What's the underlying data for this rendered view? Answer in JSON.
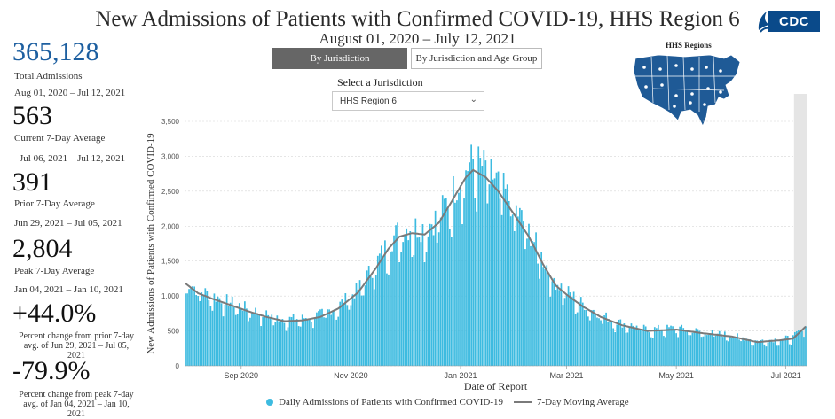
{
  "header": {
    "title": "New Admissions of Patients with Confirmed COVID-19, HHS Region 6",
    "subtitle": "August 01, 2020 – July 12, 2021",
    "logo_text": "CDC"
  },
  "controls": {
    "tab_jurisdiction": "By Jurisdiction",
    "tab_age_group": "By Jurisdiction and Age Group",
    "select_label": "Select a Jurisdiction",
    "select_value": "HHS Region 6"
  },
  "map": {
    "title": "HHS Regions",
    "fill_color": "#1f5a96"
  },
  "stats": {
    "total_value": "365,128",
    "total_label": "Total Admissions",
    "total_range": "Aug 01, 2020 – Jul 12, 2021",
    "current_value": "563",
    "current_label": "Current 7-Day Average",
    "current_range": "Jul 06, 2021 – Jul 12, 2021",
    "prior_value": "391",
    "prior_label": "Prior 7-Day Average",
    "prior_range": "Jun 29, 2021 – Jul 05, 2021",
    "peak_value": "2,804",
    "peak_label": "Peak 7-Day Average",
    "peak_range": "Jan 04, 2021 – Jan 10, 2021",
    "pct_prior_value": "+44.0%",
    "pct_prior_note": "Percent change from prior 7-day avg. of Jun 29, 2021 – Jul 05, 2021",
    "pct_peak_value": "-79.9%",
    "pct_peak_note": "Percent change from peak 7-day avg. of Jan 04, 2021 – Jan 10, 2021"
  },
  "chart_data": {
    "type": "bar",
    "xlabel": "Date of Report",
    "ylabel": "New Admissions of Patients with Confirmed COVID-19",
    "ylim": [
      0,
      3500
    ],
    "yticks": [
      "0",
      "500",
      "1,000",
      "1,500",
      "2,000",
      "2,500",
      "3,000",
      "3,500"
    ],
    "xticks": [
      "Sep 2020",
      "Nov 2020",
      "Jan 2021",
      "Mar 2021",
      "May 2021",
      "Jul 2021"
    ],
    "x_start": "2020-08-01",
    "x_end": "2021-07-12",
    "grid": true,
    "shaded_range": [
      "2021-07-06",
      "2021-07-12"
    ],
    "bar_color": "#3dbbe0",
    "line_color": "#7a7a7a",
    "legend": [
      "Daily Admissions of Patients with Confirmed COVID-19",
      "7-Day Moving Average"
    ],
    "moving_average_anchors": [
      [
        "2020-08-01",
        1180
      ],
      [
        "2020-08-08",
        1040
      ],
      [
        "2020-08-16",
        960
      ],
      [
        "2020-08-25",
        880
      ],
      [
        "2020-09-05",
        780
      ],
      [
        "2020-09-15",
        700
      ],
      [
        "2020-09-25",
        640
      ],
      [
        "2020-10-05",
        650
      ],
      [
        "2020-10-15",
        700
      ],
      [
        "2020-10-25",
        820
      ],
      [
        "2020-11-05",
        1050
      ],
      [
        "2020-11-15",
        1400
      ],
      [
        "2020-11-22",
        1680
      ],
      [
        "2020-11-28",
        1850
      ],
      [
        "2020-12-05",
        1900
      ],
      [
        "2020-12-12",
        1880
      ],
      [
        "2020-12-20",
        2050
      ],
      [
        "2020-12-27",
        2350
      ],
      [
        "2021-01-04",
        2700
      ],
      [
        "2021-01-08",
        2804
      ],
      [
        "2021-01-15",
        2700
      ],
      [
        "2021-01-22",
        2500
      ],
      [
        "2021-01-30",
        2200
      ],
      [
        "2021-02-08",
        1850
      ],
      [
        "2021-02-16",
        1450
      ],
      [
        "2021-02-23",
        1150
      ],
      [
        "2021-03-02",
        1000
      ],
      [
        "2021-03-10",
        850
      ],
      [
        "2021-03-20",
        700
      ],
      [
        "2021-04-01",
        580
      ],
      [
        "2021-04-15",
        500
      ],
      [
        "2021-05-01",
        520
      ],
      [
        "2021-05-15",
        470
      ],
      [
        "2021-06-01",
        420
      ],
      [
        "2021-06-15",
        340
      ],
      [
        "2021-06-29",
        370
      ],
      [
        "2021-07-05",
        391
      ],
      [
        "2021-07-12",
        563
      ]
    ]
  }
}
